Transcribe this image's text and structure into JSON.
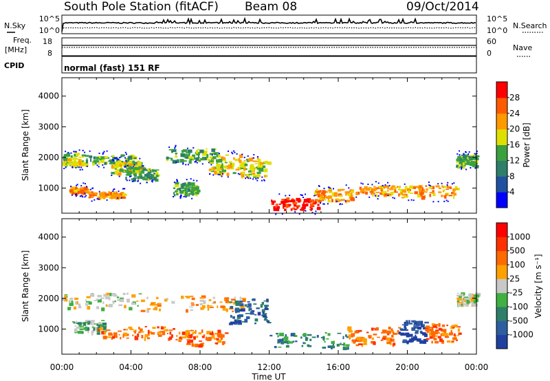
{
  "header": {
    "station": "South Pole Station (fitACF)",
    "beam": "Beam 08",
    "date": "09/Oct/2014"
  },
  "top_panels": {
    "nsky_label": "N.Sky",
    "nsky_ticks": [
      "10^5",
      "10^0"
    ],
    "nsearch_label": "N.Search",
    "nsearch_ticks": [
      "10^5",
      "10^0"
    ],
    "freq_label": "Freq.",
    "freq_unit": "[MHz]",
    "freq_ticks": [
      "18",
      "8"
    ],
    "nave_label": "Nave",
    "nave_ticks": [
      "60",
      "0"
    ],
    "cpid_label": "CPID",
    "cpid_text": "normal (fast) 151 RF"
  },
  "chart_data": [
    {
      "type": "heatmap",
      "name": "power",
      "xlabel": "Time UT",
      "ylabel": "Slant Range [km]",
      "xlim": [
        0,
        24
      ],
      "ylim": [
        180,
        4600
      ],
      "x_ticks": [
        "00:00",
        "04:00",
        "08:00",
        "12:00",
        "16:00",
        "20:00",
        "00:00"
      ],
      "y_ticks": [
        1000,
        2000,
        3000,
        4000
      ],
      "colorbar": {
        "label": "Power [dB]",
        "ticks": [
          "4",
          "8",
          "12",
          "16",
          "20",
          "24",
          "28"
        ],
        "colors": [
          "#0000ff",
          "#2050a0",
          "#2e7e6a",
          "#3aa040",
          "#e0e000",
          "#ff9900",
          "#ff5a00",
          "#ff0000"
        ]
      },
      "echo_regions": [
        {
          "t": [
            0.0,
            1.3
          ],
          "range": [
            1750,
            2150
          ],
          "level": 4
        },
        {
          "t": [
            1.3,
            4.2
          ],
          "range": [
            1800,
            2100
          ],
          "level": 3
        },
        {
          "t": [
            2.8,
            4.6
          ],
          "range": [
            1500,
            1900
          ],
          "level": 4
        },
        {
          "t": [
            0.4,
            1.4
          ],
          "range": [
            850,
            1050
          ],
          "level": 5
        },
        {
          "t": [
            1.5,
            3.6
          ],
          "range": [
            700,
            900
          ],
          "level": 5
        },
        {
          "t": [
            3.6,
            5.5
          ],
          "range": [
            1300,
            1700
          ],
          "level": 3
        },
        {
          "t": [
            6.0,
            9.0
          ],
          "range": [
            1900,
            2300
          ],
          "level": 3
        },
        {
          "t": [
            8.5,
            10.4
          ],
          "range": [
            1500,
            2100
          ],
          "level": 4
        },
        {
          "t": [
            10.3,
            11.9
          ],
          "range": [
            1400,
            2000
          ],
          "level": 4
        },
        {
          "t": [
            6.4,
            7.8
          ],
          "range": [
            800,
            1200
          ],
          "level": 3
        },
        {
          "t": [
            12.0,
            14.8
          ],
          "range": [
            300,
            700
          ],
          "level": 7
        },
        {
          "t": [
            14.5,
            16.8
          ],
          "range": [
            600,
            1000
          ],
          "level": 5
        },
        {
          "t": [
            17.0,
            19.6
          ],
          "range": [
            800,
            1100
          ],
          "level": 5
        },
        {
          "t": [
            19.6,
            22.8
          ],
          "range": [
            700,
            1100
          ],
          "level": 5
        },
        {
          "t": [
            22.8,
            24.0
          ],
          "range": [
            1700,
            2100
          ],
          "level": 3
        }
      ]
    },
    {
      "type": "heatmap",
      "name": "velocity",
      "xlabel": "Time UT",
      "ylabel": "Slant Range [km]",
      "xlim": [
        0,
        24
      ],
      "ylim": [
        180,
        4600
      ],
      "x_ticks": [
        "00:00",
        "04:00",
        "08:00",
        "12:00",
        "16:00",
        "20:00",
        "00:00"
      ],
      "y_ticks": [
        1000,
        2000,
        3000,
        4000
      ],
      "colorbar": {
        "label": "Velocity [m s⁻¹]",
        "ticks": [
          "1000",
          "500",
          "100",
          "25",
          "-25",
          "-100",
          "-500",
          "-1000"
        ],
        "colors": [
          "#2040a0",
          "#2e5ea0",
          "#2e7e6a",
          "#40b040",
          "#c8c8c8",
          "#ffa000",
          "#ff6a00",
          "#ff3000",
          "#ff0000"
        ]
      },
      "echo_regions": [
        {
          "t": [
            0.0,
            4.5
          ],
          "range": [
            1700,
            2200
          ],
          "level": 4
        },
        {
          "t": [
            4.5,
            10.5
          ],
          "range": [
            1600,
            2100
          ],
          "level": 5
        },
        {
          "t": [
            0.6,
            2.4
          ],
          "range": [
            900,
            1300
          ],
          "level": 3
        },
        {
          "t": [
            2.0,
            6.5
          ],
          "range": [
            700,
            1100
          ],
          "level": 6
        },
        {
          "t": [
            6.5,
            9.5
          ],
          "range": [
            500,
            1000
          ],
          "level": 6
        },
        {
          "t": [
            9.6,
            11.9
          ],
          "range": [
            1200,
            2000
          ],
          "level": 1
        },
        {
          "t": [
            12.0,
            16.5
          ],
          "range": [
            400,
            900
          ],
          "level": 2
        },
        {
          "t": [
            16.5,
            19.5
          ],
          "range": [
            500,
            1100
          ],
          "level": 6
        },
        {
          "t": [
            19.5,
            21.0
          ],
          "range": [
            600,
            1300
          ],
          "level": 0
        },
        {
          "t": [
            21.0,
            23.0
          ],
          "range": [
            600,
            1200
          ],
          "level": 6
        },
        {
          "t": [
            22.8,
            24.0
          ],
          "range": [
            1800,
            2200
          ],
          "level": 4
        }
      ]
    }
  ]
}
